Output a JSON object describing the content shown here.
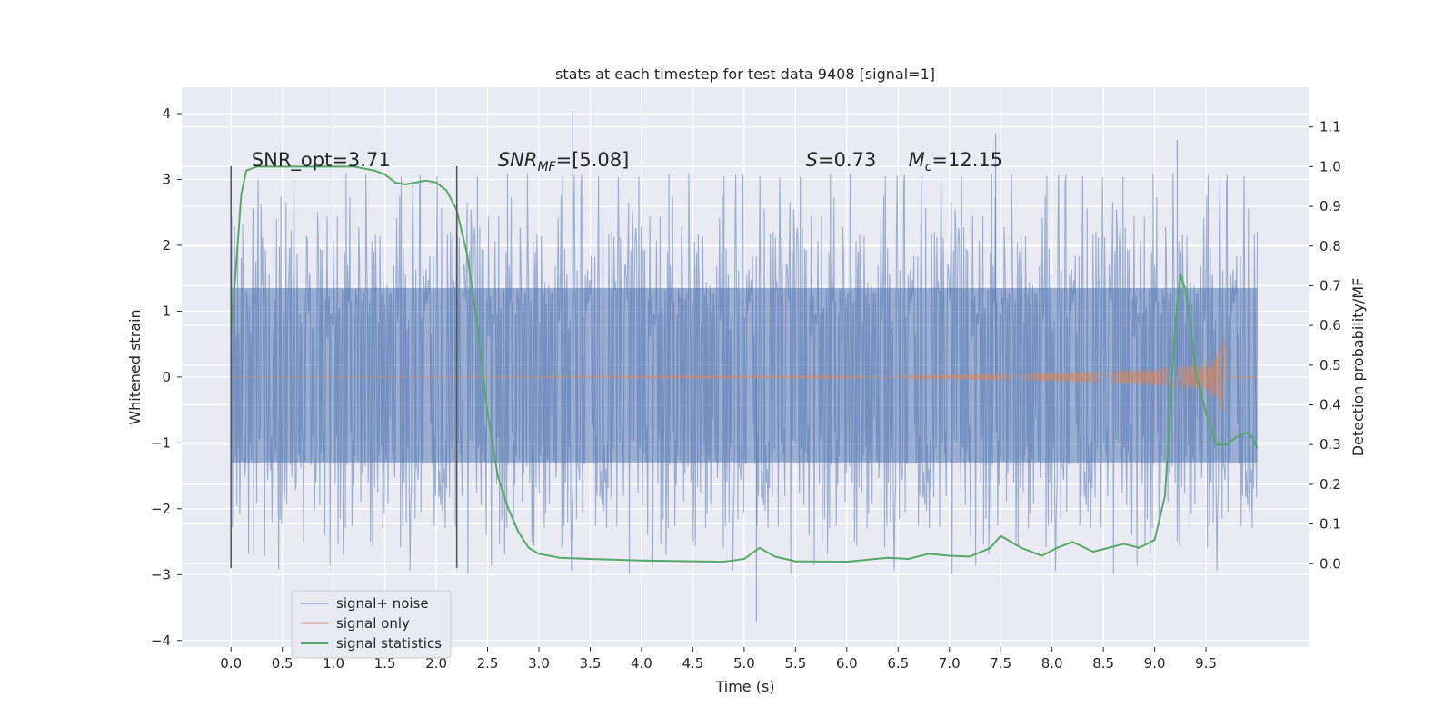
{
  "chart_data": {
    "type": "line",
    "title": "stats at each timestep for test data 9408 [signal=1]",
    "xlabel": "Time (s)",
    "ylabel": "Whitened strain",
    "y2label": "Detection probability/MF",
    "xlim": [
      -0.48,
      10.5
    ],
    "ylim": [
      -4.1,
      4.4
    ],
    "y2lim": [
      -0.21,
      1.2
    ],
    "x_ticks": [
      0.0,
      0.5,
      1.0,
      1.5,
      2.0,
      2.5,
      3.0,
      3.5,
      4.0,
      4.5,
      5.0,
      5.5,
      6.0,
      6.5,
      7.0,
      7.5,
      8.0,
      8.5,
      9.0,
      9.5
    ],
    "x_tick_labels": [
      "0.0",
      "0.5",
      "1.0",
      "1.5",
      "2.0",
      "2.5",
      "3.0",
      "3.5",
      "4.0",
      "4.5",
      "5.0",
      "5.5",
      "6.0",
      "6.5",
      "7.0",
      "7.5",
      "8.0",
      "8.5",
      "9.0",
      "9.5"
    ],
    "y_ticks": [
      4,
      3,
      2,
      1,
      0,
      -1,
      -2,
      -3,
      -4
    ],
    "y_tick_labels": [
      "4",
      "3",
      "2",
      "1",
      "0",
      "−1",
      "−2",
      "−3",
      "−4"
    ],
    "y2_ticks": [
      1.1,
      1.0,
      0.9,
      0.8,
      0.7,
      0.6,
      0.5,
      0.4,
      0.3,
      0.2,
      0.1,
      0.0
    ],
    "y2_tick_labels": [
      "1.1",
      "1.0",
      "0.9",
      "0.8",
      "0.7",
      "0.6",
      "0.5",
      "0.4",
      "0.3",
      "0.2",
      "0.1",
      "0.0"
    ],
    "grid": true,
    "legend_position": "lower-left",
    "vlines": [
      0.0,
      2.2
    ],
    "vline_range": [
      -2.9,
      3.2
    ],
    "annotations": [
      {
        "text": "SNR_opt=3.71",
        "x": 0.2,
        "y": 3.2
      },
      {
        "label_main": "SNR",
        "label_sub": "MF",
        "label_rest": "=[5.08]",
        "x": 2.6,
        "y": 3.2
      },
      {
        "label_main": "S",
        "label_rest": "=0.73",
        "x": 5.6,
        "y": 3.2
      },
      {
        "label_main": "M",
        "label_sub": "c",
        "label_rest": "=12.15",
        "x": 6.6,
        "y": 3.2
      }
    ],
    "series": [
      {
        "name": "signal+ noise",
        "color": "#4c72b0",
        "axis": "left",
        "x_range": [
          0.0,
          10.0
        ],
        "core_band": [
          -1.3,
          1.35
        ],
        "typical_peak": [
          -2.6,
          3.0
        ],
        "max": 4.05,
        "min": -3.72
      },
      {
        "name": "signal only",
        "color": "#dd8452",
        "axis": "left",
        "x": [
          0.0,
          6.5,
          7.5,
          8.5,
          9.0,
          9.3,
          9.5,
          9.6,
          9.65,
          9.7
        ],
        "envelope": [
          0.0,
          0.02,
          0.05,
          0.09,
          0.13,
          0.17,
          0.23,
          0.32,
          0.5,
          0.65
        ]
      },
      {
        "name": "signal statistics",
        "color": "#55a868",
        "axis": "right",
        "x": [
          0.0,
          0.05,
          0.1,
          0.15,
          0.25,
          0.4,
          0.6,
          0.8,
          1.0,
          1.2,
          1.4,
          1.5,
          1.6,
          1.7,
          1.8,
          1.9,
          2.0,
          2.1,
          2.2,
          2.3,
          2.4,
          2.5,
          2.6,
          2.7,
          2.8,
          2.9,
          3.0,
          3.2,
          3.5,
          4.0,
          4.5,
          4.8,
          5.0,
          5.15,
          5.3,
          5.5,
          6.0,
          6.2,
          6.4,
          6.6,
          6.8,
          7.0,
          7.2,
          7.4,
          7.5,
          7.7,
          7.9,
          8.05,
          8.2,
          8.4,
          8.55,
          8.7,
          8.85,
          9.0,
          9.1,
          9.2,
          9.25,
          9.3,
          9.35,
          9.4,
          9.5,
          9.6,
          9.7,
          9.8,
          9.9,
          9.95,
          10.0
        ],
        "values": [
          0.58,
          0.75,
          0.93,
          0.99,
          1.0,
          1.0,
          1.0,
          1.0,
          1.0,
          1.0,
          0.99,
          0.98,
          0.96,
          0.955,
          0.96,
          0.965,
          0.96,
          0.94,
          0.89,
          0.78,
          0.6,
          0.38,
          0.22,
          0.14,
          0.08,
          0.04,
          0.025,
          0.015,
          0.012,
          0.008,
          0.006,
          0.005,
          0.012,
          0.04,
          0.018,
          0.006,
          0.005,
          0.01,
          0.015,
          0.012,
          0.025,
          0.02,
          0.018,
          0.04,
          0.07,
          0.04,
          0.02,
          0.04,
          0.055,
          0.03,
          0.04,
          0.05,
          0.04,
          0.06,
          0.17,
          0.6,
          0.73,
          0.69,
          0.6,
          0.48,
          0.38,
          0.3,
          0.3,
          0.32,
          0.33,
          0.32,
          0.29
        ]
      }
    ]
  }
}
